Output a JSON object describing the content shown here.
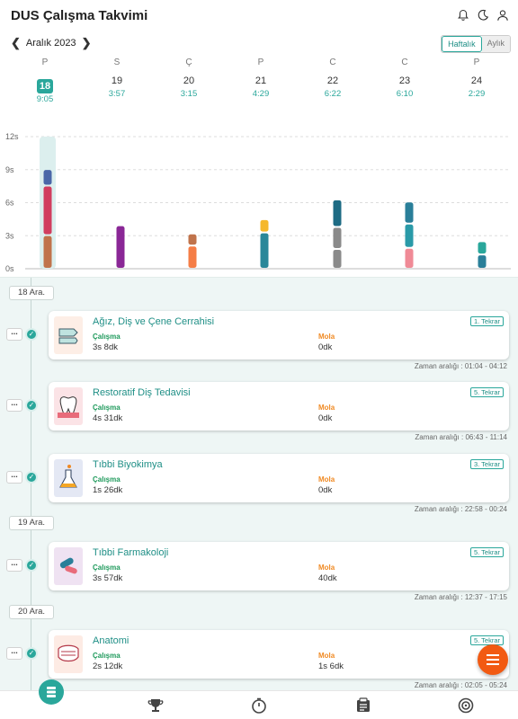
{
  "app": {
    "title": "DUS Çalışma Takvimi"
  },
  "header_icons": [
    "bell-icon",
    "moon-icon",
    "user-icon"
  ],
  "nav": {
    "month": "Aralık 2023",
    "views": [
      "Haftalık",
      "Aylık"
    ],
    "active_view": "Haftalık"
  },
  "week": [
    {
      "letter": "P",
      "num": "18",
      "time": "9:05",
      "selected": true
    },
    {
      "letter": "S",
      "num": "19",
      "time": "3:57"
    },
    {
      "letter": "Ç",
      "num": "20",
      "time": "3:15"
    },
    {
      "letter": "P",
      "num": "21",
      "time": "4:29"
    },
    {
      "letter": "C",
      "num": "22",
      "time": "6:22"
    },
    {
      "letter": "C",
      "num": "23",
      "time": "6:10"
    },
    {
      "letter": "P",
      "num": "24",
      "time": "2:29"
    }
  ],
  "chart_data": {
    "type": "bar",
    "stacked": true,
    "categories": [
      "18",
      "19",
      "20",
      "21",
      "22",
      "23",
      "24"
    ],
    "y_ticks": [
      "0s",
      "3s",
      "6s",
      "9s",
      "12s"
    ],
    "ylim": [
      0,
      12
    ],
    "grid": true,
    "unit": "hours",
    "goal": {
      "day": "18",
      "value": 12,
      "color": "#dcefee"
    },
    "stacks": [
      [
        {
          "value": 3.05,
          "color": "#c0734b"
        },
        {
          "value": 4.5,
          "color": "#d13e5f"
        },
        {
          "value": 1.5,
          "color": "#4a67a8"
        }
      ],
      [
        {
          "value": 3.95,
          "color": "#8a2796"
        }
      ],
      [
        {
          "value": 2.1,
          "color": "#f57d46"
        },
        {
          "value": 1.1,
          "color": "#c0734b"
        }
      ],
      [
        {
          "value": 3.3,
          "color": "#2a8799"
        },
        {
          "value": 1.2,
          "color": "#f5b82b"
        }
      ],
      [
        {
          "value": 1.8,
          "color": "#8a8a8a"
        },
        {
          "value": 2.0,
          "color": "#8a8a8a"
        },
        {
          "value": 2.5,
          "color": "#1d6b84"
        }
      ],
      [
        {
          "value": 1.9,
          "color": "#f08a96"
        },
        {
          "value": 2.2,
          "color": "#2a9aa8"
        },
        {
          "value": 2.0,
          "color": "#2a7f99"
        }
      ],
      [
        {
          "value": 1.3,
          "color": "#2a7f99"
        },
        {
          "value": 1.2,
          "color": "#2aa79b"
        }
      ]
    ]
  },
  "list": {
    "dates": [
      "18 Ara.",
      "19 Ara.",
      "20 Ara."
    ],
    "work_label": "Çalışma",
    "break_label": "Mola",
    "range_prefix": "Zaman aralığı :",
    "sessions": [
      {
        "title": "Ağız, Diş ve Çene Cerrahisi",
        "tekrar": "1. Tekrar",
        "work": "3s 8dk",
        "break": "0dk",
        "range": "Zaman aralığı : 01:04 - 04:12",
        "thumb_icon": "dental-tools-icon",
        "thumb_color": "#fdeee6"
      },
      {
        "title": "Restoratif Diş Tedavisi",
        "tekrar": "5. Tekrar",
        "work": "4s 31dk",
        "break": "0dk",
        "range": "Zaman aralığı : 06:43 - 11:14",
        "thumb_icon": "tooth-icon",
        "thumb_color": "#fbe3e6"
      },
      {
        "title": "Tıbbi Biyokimya",
        "tekrar": "3. Tekrar",
        "work": "1s 26dk",
        "break": "0dk",
        "range": "Zaman aralığı : 22:58 - 00:24",
        "thumb_icon": "flask-icon",
        "thumb_color": "#e4e8f4"
      },
      {
        "title": "Tıbbi Farmakoloji",
        "tekrar": "5. Tekrar",
        "work": "3s 57dk",
        "break": "40dk",
        "range": "Zaman aralığı : 12:37 - 17:15",
        "thumb_icon": "pills-icon",
        "thumb_color": "#efe2f2"
      },
      {
        "title": "Anatomi",
        "tekrar": "5. Tekrar",
        "work": "2s 12dk",
        "break": "1s 6dk",
        "range": "Zaman aralığı : 02:05 - 05:24",
        "thumb_icon": "jaw-icon",
        "thumb_color": "#fdebe4"
      }
    ]
  },
  "colors": {
    "accent": "#2aa79b",
    "fab": "#f25a12",
    "work": "#1f9a5c",
    "break": "#f08a24"
  },
  "bottom_nav": [
    "timeline-icon",
    "trophy-icon",
    "timer-icon",
    "notes-icon",
    "target-icon"
  ]
}
